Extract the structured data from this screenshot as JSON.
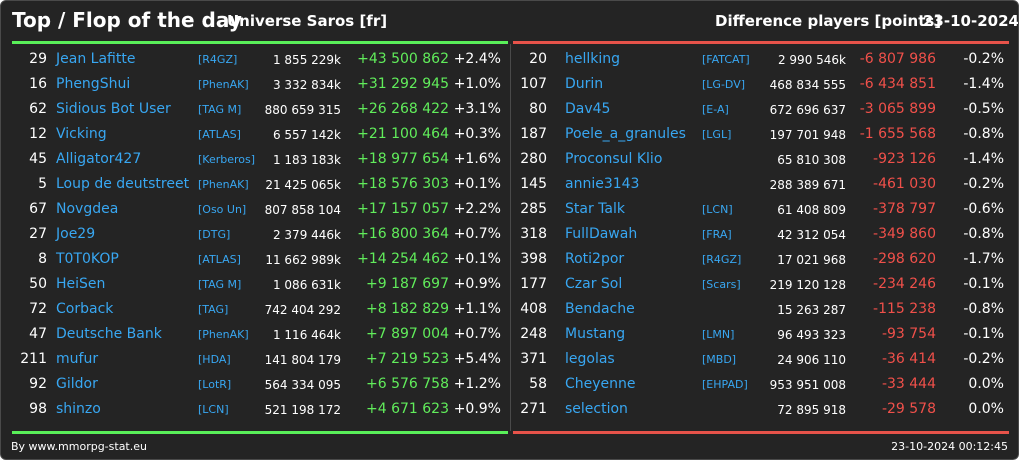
{
  "header": {
    "title": "Top / Flop of the day",
    "universe": "Universe Saros [fr]",
    "metric": "Difference players [points]",
    "date": "23-10-2024"
  },
  "colors": {
    "background": "#242424",
    "top_accent": "#59ef59",
    "flop_accent": "#e7534a",
    "positive_text": "#61ed5b",
    "negative_text": "#f0504a",
    "link_text": "#38a7f2"
  },
  "top": [
    {
      "rank": "29",
      "name": "Jean Lafitte",
      "guild": "[R4GZ]",
      "points": "1 855 229k",
      "diff": "+43 500 862",
      "pct": "+2.4%"
    },
    {
      "rank": "16",
      "name": "PhengShui",
      "guild": "[PhenAK]",
      "points": "3 332 834k",
      "diff": "+31 292 945",
      "pct": "+1.0%"
    },
    {
      "rank": "62",
      "name": "Sidious Bot User",
      "guild": "[TAG M]",
      "points": "880 659 315",
      "diff": "+26 268 422",
      "pct": "+3.1%"
    },
    {
      "rank": "12",
      "name": "Vicking",
      "guild": "[ATLAS]",
      "points": "6 557 142k",
      "diff": "+21 100 464",
      "pct": "+0.3%"
    },
    {
      "rank": "45",
      "name": "Alligator427",
      "guild": "[Kerberos]",
      "points": "1 183 183k",
      "diff": "+18 977 654",
      "pct": "+1.6%"
    },
    {
      "rank": "5",
      "name": "Loup de deutstreet",
      "guild": "[PhenAK]",
      "points": "21 425 065k",
      "diff": "+18 576 303",
      "pct": "+0.1%"
    },
    {
      "rank": "67",
      "name": "Novgdea",
      "guild": "[Oso Un]",
      "points": "807 858 104",
      "diff": "+17 157 057",
      "pct": "+2.2%"
    },
    {
      "rank": "27",
      "name": "Joe29",
      "guild": "[DTG]",
      "points": "2 379 446k",
      "diff": "+16 800 364",
      "pct": "+0.7%"
    },
    {
      "rank": "8",
      "name": "T0T0KOP",
      "guild": "[ATLAS]",
      "points": "11 662 989k",
      "diff": "+14 254 462",
      "pct": "+0.1%"
    },
    {
      "rank": "50",
      "name": "HeiSen",
      "guild": "[TAG M]",
      "points": "1 086 631k",
      "diff": "+9 187 697",
      "pct": "+0.9%"
    },
    {
      "rank": "72",
      "name": "Corback",
      "guild": "[TAG]",
      "points": "742 404 292",
      "diff": "+8 182 829",
      "pct": "+1.1%"
    },
    {
      "rank": "47",
      "name": "Deutsche Bank",
      "guild": "[PhenAK]",
      "points": "1 116 464k",
      "diff": "+7 897 004",
      "pct": "+0.7%"
    },
    {
      "rank": "211",
      "name": "mufur",
      "guild": "[HDA]",
      "points": "141 804 179",
      "diff": "+7 219 523",
      "pct": "+5.4%"
    },
    {
      "rank": "92",
      "name": "Gildor",
      "guild": "[LotR]",
      "points": "564 334 095",
      "diff": "+6 576 758",
      "pct": "+1.2%"
    },
    {
      "rank": "98",
      "name": "shinzo",
      "guild": "[LCN]",
      "points": "521 198 172",
      "diff": "+4 671 623",
      "pct": "+0.9%"
    }
  ],
  "flop": [
    {
      "rank": "20",
      "name": "hellking",
      "guild": "[FATCAT]",
      "points": "2 990 546k",
      "diff": "-6 807 986",
      "pct": "-0.2%"
    },
    {
      "rank": "107",
      "name": "Durin",
      "guild": "[LG-DV]",
      "points": "468 834 555",
      "diff": "-6 434 851",
      "pct": "-1.4%"
    },
    {
      "rank": "80",
      "name": "Dav45",
      "guild": "[E-A]",
      "points": "672 696 637",
      "diff": "-3 065 899",
      "pct": "-0.5%"
    },
    {
      "rank": "187",
      "name": "Poele_a_granules",
      "guild": "[LGL]",
      "points": "197 701 948",
      "diff": "-1 655 568",
      "pct": "-0.8%"
    },
    {
      "rank": "280",
      "name": "Proconsul Klio",
      "guild": "",
      "points": "65 810 308",
      "diff": "-923 126",
      "pct": "-1.4%"
    },
    {
      "rank": "145",
      "name": "annie3143",
      "guild": "",
      "points": "288 389 671",
      "diff": "-461 030",
      "pct": "-0.2%"
    },
    {
      "rank": "285",
      "name": "Star Talk",
      "guild": "[LCN]",
      "points": "61 408 809",
      "diff": "-378 797",
      "pct": "-0.6%"
    },
    {
      "rank": "318",
      "name": "FullDawah",
      "guild": "[FRA]",
      "points": "42 312 054",
      "diff": "-349 860",
      "pct": "-0.8%"
    },
    {
      "rank": "398",
      "name": "Roti2por",
      "guild": "[R4GZ]",
      "points": "17 021 968",
      "diff": "-298 620",
      "pct": "-1.7%"
    },
    {
      "rank": "177",
      "name": "Czar Sol",
      "guild": "[Scars]",
      "points": "219 120 128",
      "diff": "-234 246",
      "pct": "-0.1%"
    },
    {
      "rank": "408",
      "name": "Bendache",
      "guild": "",
      "points": "15 263 287",
      "diff": "-115 238",
      "pct": "-0.8%"
    },
    {
      "rank": "248",
      "name": "Mustang",
      "guild": "[LMN]",
      "points": "96 493 323",
      "diff": "-93 754",
      "pct": "-0.1%"
    },
    {
      "rank": "371",
      "name": "legolas",
      "guild": "[MBD]",
      "points": "24 906 110",
      "diff": "-36 414",
      "pct": "-0.2%"
    },
    {
      "rank": "58",
      "name": "Cheyenne",
      "guild": "[EHPAD]",
      "points": "953 951 008",
      "diff": "-33 444",
      "pct": "0.0%"
    },
    {
      "rank": "271",
      "name": "selection",
      "guild": "",
      "points": "72 895 918",
      "diff": "-29 578",
      "pct": "0.0%"
    }
  ],
  "footer": {
    "credit": "By www.mmorpg-stat.eu",
    "timestamp": "23-10-2024 00:12:45"
  }
}
